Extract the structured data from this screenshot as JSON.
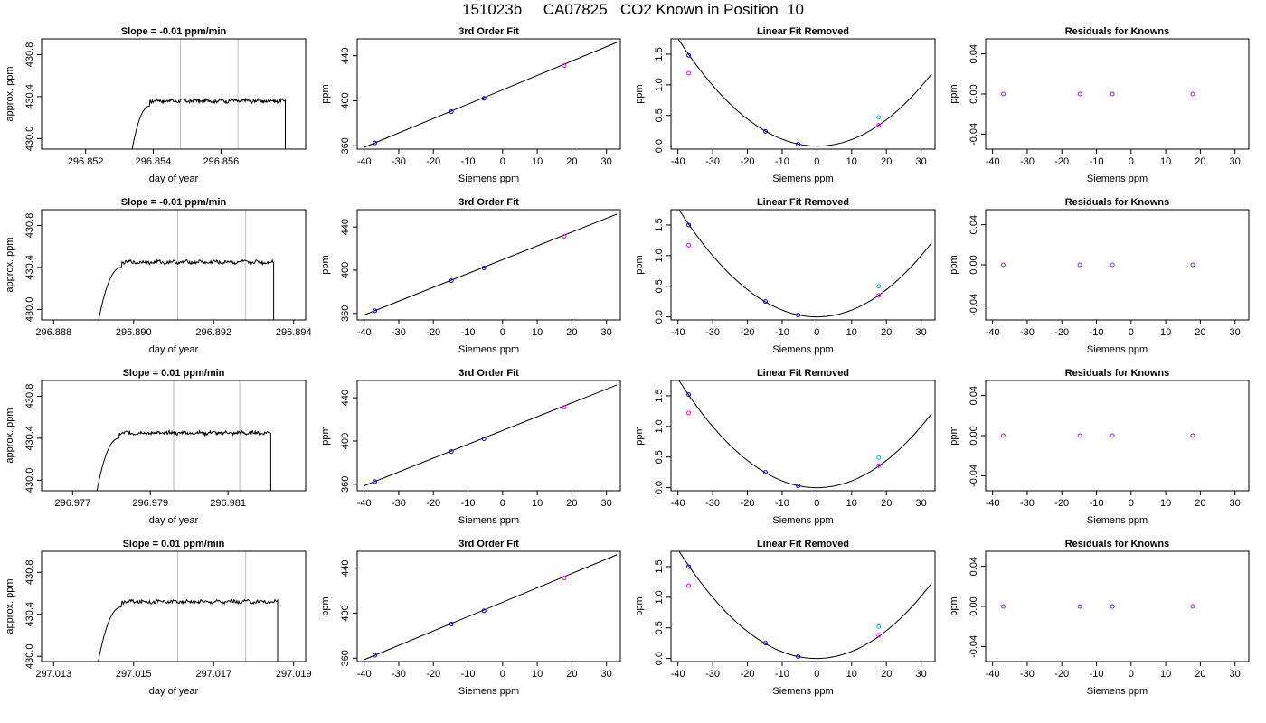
{
  "page_title": "151023b     CA07825   CO2 Known in Position  10",
  "colors": {
    "trace": "#000000",
    "marker_line": "#bebebe",
    "point_blue": "#0000ff",
    "point_magenta": "#ff00ff",
    "point_cyan": "#00bfff",
    "point_purple": "#8a2be2"
  },
  "chart_data": [
    {
      "type": "line",
      "title": "Slope =  -0.01  ppm/min",
      "xlabel": "day of year",
      "ylabel": "approx. ppm",
      "xlim": [
        296.8507,
        296.8585
      ],
      "ylim": [
        429.9,
        430.95
      ],
      "xticks": [
        "296.852",
        "296.854",
        "296.856"
      ],
      "yticks": [
        "430.0",
        "430.4",
        "430.8"
      ],
      "trace": {
        "x_start": 296.8533,
        "x_end": 296.8579,
        "plateau_from": 296.8539,
        "level": 430.36,
        "noise": 0.015
      },
      "markers_x": [
        296.8548,
        296.8565
      ]
    },
    {
      "type": "line",
      "title": "3rd Order Fit",
      "xlabel": "Siemens ppm",
      "ylabel": "ppm",
      "xlim": [
        -42,
        34
      ],
      "ylim": [
        357,
        455
      ],
      "xticks": [
        "-40",
        "-30",
        "-20",
        "-10",
        "0",
        "10",
        "20",
        "30"
      ],
      "yticks": [
        "360",
        "400",
        "440"
      ],
      "fit": {
        "x": [
          -40,
          33
        ],
        "y": [
          358.6,
          451.9
        ]
      },
      "points": [
        {
          "x": -36.9,
          "y": 362.5
        },
        {
          "x": -14.8,
          "y": 390.3
        },
        {
          "x": -5.4,
          "y": 402.1
        },
        {
          "x": 17.8,
          "y": 431.2
        }
      ]
    },
    {
      "type": "scatter",
      "title": "Linear Fit Removed",
      "xlabel": "Siemens ppm",
      "ylabel": "ppm",
      "xlim": [
        -42,
        34
      ],
      "ylim": [
        -0.05,
        1.75
      ],
      "xticks": [
        "-40",
        "-30",
        "-20",
        "-10",
        "0",
        "10",
        "20",
        "30"
      ],
      "yticks": [
        "0.0",
        "0.5",
        "1.0",
        "1.5"
      ],
      "curve": {
        "x_from": -40,
        "x_to": 33,
        "a": 0.00109,
        "b": -0.0003,
        "c": 0.0
      },
      "points": [
        {
          "x": -36.9,
          "y": 1.48
        },
        {
          "x": -36.9,
          "y": 1.19
        },
        {
          "x": -14.8,
          "y": 0.24
        },
        {
          "x": -5.4,
          "y": 0.03
        },
        {
          "x": 17.8,
          "y": 0.47
        },
        {
          "x": 17.8,
          "y": 0.34
        }
      ]
    },
    {
      "type": "scatter",
      "title": "Residuals for Knowns",
      "xlabel": "Siemens ppm",
      "ylabel": "ppm",
      "xlim": [
        -42,
        34
      ],
      "ylim": [
        -0.055,
        0.055
      ],
      "xticks": [
        "-40",
        "-30",
        "-20",
        "-10",
        "0",
        "10",
        "20",
        "30"
      ],
      "yticks": [
        "-0.04",
        "0.00",
        "0.04"
      ],
      "points": [
        {
          "x": -36.9,
          "y": 0
        },
        {
          "x": -14.8,
          "y": 0
        },
        {
          "x": -5.4,
          "y": 0
        },
        {
          "x": 17.8,
          "y": 0
        }
      ]
    },
    {
      "type": "line",
      "title": "Slope =  -0.01  ppm/min",
      "xlabel": "day of year",
      "ylabel": "approx. ppm",
      "xlim": [
        296.8877,
        296.8943
      ],
      "ylim": [
        429.9,
        430.95
      ],
      "xticks": [
        "296.888",
        "296.890",
        "296.892",
        "296.894"
      ],
      "yticks": [
        "430.0",
        "430.4",
        "430.8"
      ],
      "trace": {
        "x_start": 296.8891,
        "x_end": 296.8935,
        "plateau_from": 296.8897,
        "level": 430.45,
        "noise": 0.015
      },
      "markers_x": [
        296.8911,
        296.8928
      ]
    },
    {
      "type": "line",
      "title": "3rd Order Fit",
      "xlabel": "Siemens ppm",
      "ylabel": "ppm",
      "xlim": [
        -42,
        34
      ],
      "ylim": [
        354,
        456
      ],
      "xticks": [
        "-40",
        "-30",
        "-20",
        "-10",
        "0",
        "10",
        "20",
        "30"
      ],
      "yticks": [
        "360",
        "400",
        "440"
      ],
      "fit": {
        "x": [
          -40,
          33
        ],
        "y": [
          358.6,
          451.9
        ]
      },
      "points": [
        {
          "x": -36.9,
          "y": 362.5
        },
        {
          "x": -14.8,
          "y": 390.3
        },
        {
          "x": -5.4,
          "y": 402.1
        },
        {
          "x": 17.8,
          "y": 431.2
        }
      ]
    },
    {
      "type": "scatter",
      "title": "Linear Fit Removed",
      "xlabel": "Siemens ppm",
      "ylabel": "ppm",
      "xlim": [
        -42,
        34
      ],
      "ylim": [
        -0.05,
        1.75
      ],
      "xticks": [
        "-40",
        "-30",
        "-20",
        "-10",
        "0",
        "10",
        "20",
        "30"
      ],
      "yticks": [
        "0.0",
        "0.5",
        "1.0",
        "1.5"
      ],
      "curve": {
        "x_from": -40,
        "x_to": 33,
        "a": 0.00111,
        "b": 0.0,
        "c": 0.0
      },
      "points": [
        {
          "x": -36.9,
          "y": 1.5
        },
        {
          "x": -36.9,
          "y": 1.17
        },
        {
          "x": -14.8,
          "y": 0.25
        },
        {
          "x": -5.4,
          "y": 0.03
        },
        {
          "x": 17.8,
          "y": 0.5
        },
        {
          "x": 17.8,
          "y": 0.35
        }
      ]
    },
    {
      "type": "scatter",
      "title": "Residuals for Knowns",
      "xlabel": "Siemens ppm",
      "ylabel": "ppm",
      "xlim": [
        -42,
        34
      ],
      "ylim": [
        -0.055,
        0.055
      ],
      "xticks": [
        "-40",
        "-30",
        "-20",
        "-10",
        "0",
        "10",
        "20",
        "30"
      ],
      "yticks": [
        "-0.04",
        "0.00",
        "0.04"
      ],
      "points": [
        {
          "x": -36.9,
          "y": 0
        },
        {
          "x": -14.8,
          "y": 0
        },
        {
          "x": -5.4,
          "y": 0
        },
        {
          "x": 17.8,
          "y": 0
        }
      ]
    },
    {
      "type": "line",
      "title": "Slope =  0.01  ppm/min",
      "xlabel": "day of year",
      "ylabel": "approx. ppm",
      "xlim": [
        296.9762,
        296.983
      ],
      "ylim": [
        429.9,
        430.95
      ],
      "xticks": [
        "296.977",
        "296.979",
        "296.981"
      ],
      "yticks": [
        "430.0",
        "430.4",
        "430.8"
      ],
      "trace": {
        "x_start": 296.9776,
        "x_end": 296.9821,
        "plateau_from": 296.9782,
        "level": 430.45,
        "noise": 0.015
      },
      "markers_x": [
        296.9796,
        296.9813
      ]
    },
    {
      "type": "line",
      "title": "3rd Order Fit",
      "xlabel": "Siemens ppm",
      "ylabel": "ppm",
      "xlim": [
        -42,
        34
      ],
      "ylim": [
        354,
        456
      ],
      "xticks": [
        "-40",
        "-30",
        "-20",
        "-10",
        "0",
        "10",
        "20",
        "30"
      ],
      "yticks": [
        "360",
        "400",
        "440"
      ],
      "fit": {
        "x": [
          -40,
          33
        ],
        "y": [
          358.6,
          451.9
        ]
      },
      "points": [
        {
          "x": -36.9,
          "y": 362.5
        },
        {
          "x": -14.8,
          "y": 390.3
        },
        {
          "x": -5.4,
          "y": 402.1
        },
        {
          "x": 17.8,
          "y": 431.2
        }
      ]
    },
    {
      "type": "scatter",
      "title": "Linear Fit Removed",
      "xlabel": "Siemens ppm",
      "ylabel": "ppm",
      "xlim": [
        -42,
        34
      ],
      "ylim": [
        -0.05,
        1.75
      ],
      "xticks": [
        "-40",
        "-30",
        "-20",
        "-10",
        "0",
        "10",
        "20",
        "30"
      ],
      "yticks": [
        "0.0",
        "0.5",
        "1.0",
        "1.5"
      ],
      "curve": {
        "x_from": -40,
        "x_to": 33,
        "a": 0.00111,
        "b": 0.0,
        "c": 0.0
      },
      "points": [
        {
          "x": -36.9,
          "y": 1.52
        },
        {
          "x": -36.9,
          "y": 1.22
        },
        {
          "x": -14.8,
          "y": 0.25
        },
        {
          "x": -5.4,
          "y": 0.03
        },
        {
          "x": 17.8,
          "y": 0.49
        },
        {
          "x": 17.8,
          "y": 0.36
        }
      ]
    },
    {
      "type": "scatter",
      "title": "Residuals for Knowns",
      "xlabel": "Siemens ppm",
      "ylabel": "ppm",
      "xlim": [
        -42,
        34
      ],
      "ylim": [
        -0.055,
        0.055
      ],
      "xticks": [
        "-40",
        "-30",
        "-20",
        "-10",
        "0",
        "10",
        "20",
        "30"
      ],
      "yticks": [
        "-0.04",
        "0.00",
        "0.04"
      ],
      "points": [
        {
          "x": -36.9,
          "y": 0
        },
        {
          "x": -14.8,
          "y": 0
        },
        {
          "x": -5.4,
          "y": 0
        },
        {
          "x": 17.8,
          "y": 0
        }
      ]
    },
    {
      "type": "line",
      "title": "Slope =  0.01  ppm/min",
      "xlabel": "day of year",
      "ylabel": "approx. ppm",
      "xlim": [
        297.0127,
        297.0193
      ],
      "ylim": [
        429.95,
        431.0
      ],
      "xticks": [
        "297.013",
        "297.015",
        "297.017",
        "297.019"
      ],
      "yticks": [
        "430.0",
        "430.4",
        "430.8"
      ],
      "trace": {
        "x_start": 297.0141,
        "x_end": 297.0186,
        "plateau_from": 297.0147,
        "level": 430.52,
        "noise": 0.015
      },
      "markers_x": [
        297.0161,
        297.0178
      ]
    },
    {
      "type": "line",
      "title": "3rd Order Fit",
      "xlabel": "Siemens ppm",
      "ylabel": "ppm",
      "xlim": [
        -42,
        34
      ],
      "ylim": [
        357,
        455
      ],
      "xticks": [
        "-40",
        "-30",
        "-20",
        "-10",
        "0",
        "10",
        "20",
        "30"
      ],
      "yticks": [
        "360",
        "400",
        "440"
      ],
      "fit": {
        "x": [
          -40,
          33
        ],
        "y": [
          358.6,
          451.9
        ]
      },
      "points": [
        {
          "x": -36.9,
          "y": 362.5
        },
        {
          "x": -14.8,
          "y": 390.3
        },
        {
          "x": -5.4,
          "y": 402.1
        },
        {
          "x": 17.8,
          "y": 431.2
        }
      ]
    },
    {
      "type": "scatter",
      "title": "Linear Fit Removed",
      "xlabel": "Siemens ppm",
      "ylabel": "ppm",
      "xlim": [
        -42,
        34
      ],
      "ylim": [
        -0.05,
        1.75
      ],
      "xticks": [
        "-40",
        "-30",
        "-20",
        "-10",
        "0",
        "10",
        "20",
        "30"
      ],
      "yticks": [
        "0.0",
        "0.5",
        "1.0",
        "1.5"
      ],
      "curve": {
        "x_from": -40,
        "x_to": 33,
        "a": 0.00112,
        "b": 0.0003,
        "c": 0.0
      },
      "points": [
        {
          "x": -36.9,
          "y": 1.5
        },
        {
          "x": -36.9,
          "y": 1.19
        },
        {
          "x": -14.8,
          "y": 0.25
        },
        {
          "x": -5.4,
          "y": 0.03
        },
        {
          "x": 17.8,
          "y": 0.52
        },
        {
          "x": 17.8,
          "y": 0.38
        }
      ]
    },
    {
      "type": "scatter",
      "title": "Residuals for Knowns",
      "xlabel": "Siemens ppm",
      "ylabel": "ppm",
      "xlim": [
        -42,
        34
      ],
      "ylim": [
        -0.055,
        0.055
      ],
      "xticks": [
        "-40",
        "-30",
        "-20",
        "-10",
        "0",
        "10",
        "20",
        "30"
      ],
      "yticks": [
        "-0.04",
        "0.00",
        "0.04"
      ],
      "points": [
        {
          "x": -36.9,
          "y": 0
        },
        {
          "x": -14.8,
          "y": 0
        },
        {
          "x": -5.4,
          "y": 0
        },
        {
          "x": 17.8,
          "y": 0
        }
      ]
    }
  ]
}
